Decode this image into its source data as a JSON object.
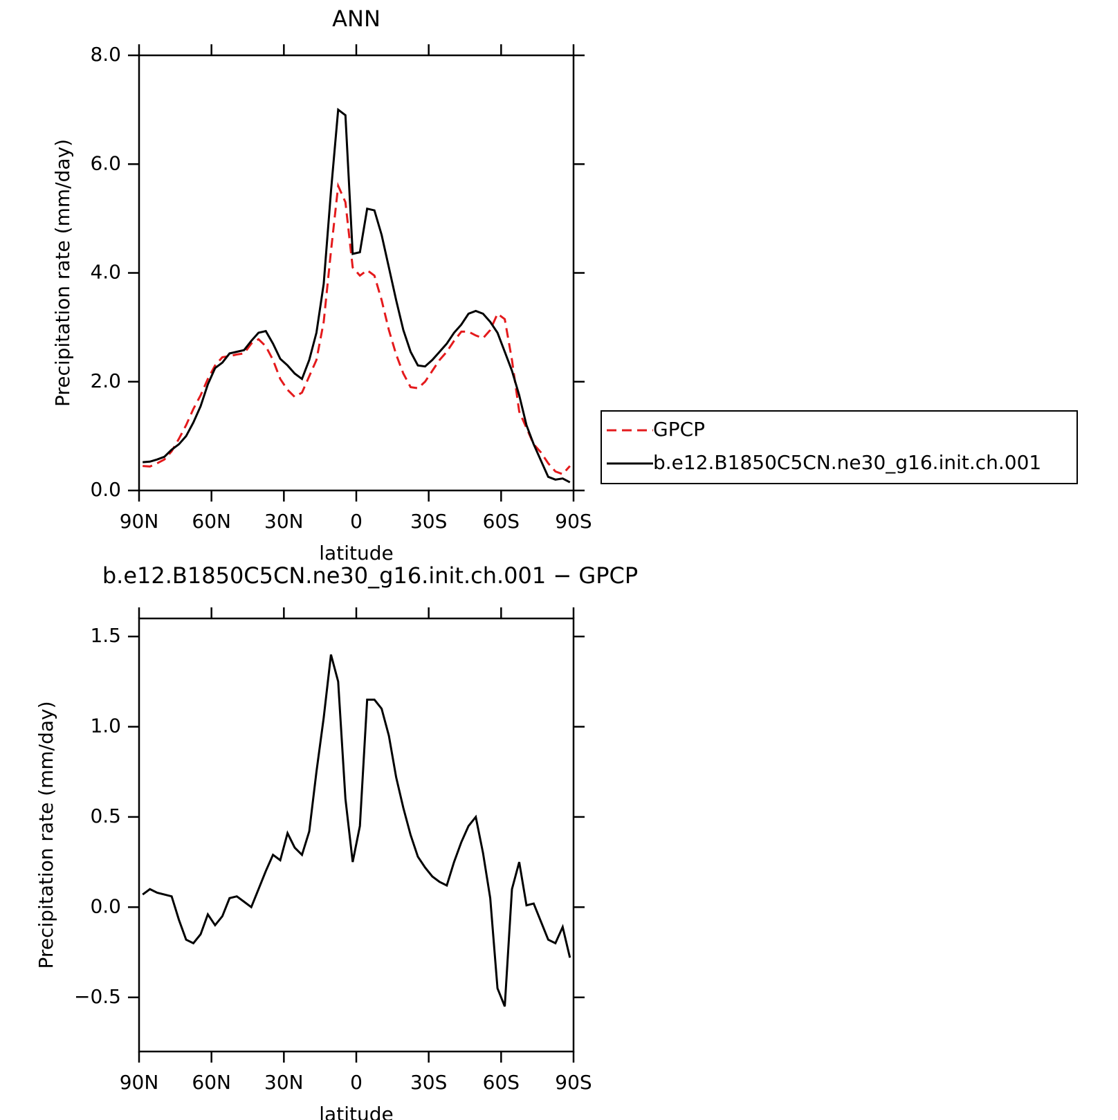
{
  "chart_data": [
    {
      "type": "line",
      "title": "ANN",
      "xlabel": "latitude",
      "ylabel": "Precipitation rate (mm/day)",
      "x": [
        88.5,
        85.5,
        82.5,
        79.5,
        76.5,
        73.5,
        70.5,
        67.5,
        64.5,
        61.5,
        58.5,
        55.5,
        52.5,
        49.5,
        46.5,
        43.5,
        40.5,
        37.5,
        34.5,
        31.5,
        28.5,
        25.5,
        22.5,
        19.5,
        16.5,
        13.5,
        10.5,
        7.5,
        4.5,
        1.5,
        -1.5,
        -4.5,
        -7.5,
        -10.5,
        -13.5,
        -16.5,
        -19.5,
        -22.5,
        -25.5,
        -28.5,
        -31.5,
        -34.5,
        -37.5,
        -40.5,
        -43.5,
        -46.5,
        -49.5,
        -52.5,
        -55.5,
        -58.5,
        -61.5,
        -64.5,
        -67.5,
        -70.5,
        -73.5,
        -76.5,
        -79.5,
        -82.5,
        -85.5,
        -88.5
      ],
      "series": [
        {
          "name": "GPCP",
          "color": "#e41a1c",
          "linestyle": "dashed",
          "values": [
            0.45,
            0.44,
            0.5,
            0.57,
            0.72,
            0.95,
            1.2,
            1.5,
            1.75,
            2.05,
            2.3,
            2.45,
            2.47,
            2.5,
            2.52,
            2.7,
            2.78,
            2.65,
            2.4,
            2.05,
            1.85,
            1.72,
            1.8,
            2.1,
            2.4,
            3.1,
            4.4,
            5.6,
            5.3,
            4.1,
            3.95,
            4.05,
            3.95,
            3.5,
            2.95,
            2.5,
            2.15,
            1.9,
            1.88,
            2.0,
            2.2,
            2.4,
            2.55,
            2.75,
            2.92,
            2.92,
            2.85,
            2.8,
            2.95,
            3.25,
            3.15,
            2.4,
            1.45,
            1.15,
            0.85,
            0.7,
            0.5,
            0.35,
            0.3,
            0.45
          ]
        },
        {
          "name": "b.e12.B1850C5CN.ne30_g16.init.ch.001",
          "color": "#000000",
          "linestyle": "solid",
          "values": [
            0.52,
            0.53,
            0.57,
            0.62,
            0.75,
            0.85,
            1.0,
            1.25,
            1.55,
            1.95,
            2.25,
            2.35,
            2.52,
            2.55,
            2.58,
            2.75,
            2.9,
            2.93,
            2.7,
            2.42,
            2.3,
            2.15,
            2.05,
            2.4,
            2.9,
            3.8,
            5.5,
            7.0,
            6.9,
            4.35,
            4.38,
            5.18,
            5.15,
            4.7,
            4.1,
            3.5,
            2.95,
            2.55,
            2.3,
            2.28,
            2.4,
            2.55,
            2.7,
            2.9,
            3.05,
            3.25,
            3.3,
            3.25,
            3.1,
            2.9,
            2.55,
            2.2,
            1.75,
            1.2,
            0.85,
            0.55,
            0.25,
            0.2,
            0.22,
            0.15
          ]
        }
      ],
      "legend": "right",
      "xlim": [
        90,
        -90
      ],
      "xticks": [
        {
          "value": 90,
          "label": "90N"
        },
        {
          "value": 60,
          "label": "60N"
        },
        {
          "value": 30,
          "label": "30N"
        },
        0,
        {
          "value": -30,
          "label": "30S"
        },
        {
          "value": -60,
          "label": "60S"
        },
        {
          "value": -90,
          "label": "90S"
        }
      ],
      "ylim": [
        0,
        8
      ],
      "yticks": [
        {
          "value": 0,
          "label": "0.0"
        },
        {
          "value": 2,
          "label": "2.0"
        },
        {
          "value": 4,
          "label": "4.0"
        },
        {
          "value": 6,
          "label": "6.0"
        },
        {
          "value": 8,
          "label": "8.0"
        }
      ]
    },
    {
      "type": "line",
      "title": "b.e12.B1850C5CN.ne30_g16.init.ch.001 − GPCP",
      "xlabel": "latitude",
      "ylabel": "Precipitation rate (mm/day)",
      "x": [
        88.5,
        85.5,
        82.5,
        79.5,
        76.5,
        73.5,
        70.5,
        67.5,
        64.5,
        61.5,
        58.5,
        55.5,
        52.5,
        49.5,
        46.5,
        43.5,
        40.5,
        37.5,
        34.5,
        31.5,
        28.5,
        25.5,
        22.5,
        19.5,
        16.5,
        13.5,
        10.5,
        7.5,
        4.5,
        1.5,
        -1.5,
        -4.5,
        -7.5,
        -10.5,
        -13.5,
        -16.5,
        -19.5,
        -22.5,
        -25.5,
        -28.5,
        -31.5,
        -34.5,
        -37.5,
        -40.5,
        -43.5,
        -46.5,
        -49.5,
        -52.5,
        -55.5,
        -58.5,
        -61.5,
        -64.5,
        -67.5,
        -70.5,
        -73.5,
        -76.5,
        -79.5,
        -82.5,
        -85.5,
        -88.5
      ],
      "series": [
        {
          "color": "#000000",
          "linestyle": "solid",
          "values": [
            0.07,
            0.1,
            0.08,
            0.07,
            0.06,
            -0.07,
            -0.18,
            -0.2,
            -0.15,
            -0.04,
            -0.1,
            -0.05,
            0.05,
            0.06,
            0.03,
            0.0,
            0.1,
            0.2,
            0.29,
            0.26,
            0.41,
            0.33,
            0.29,
            0.42,
            0.75,
            1.05,
            1.4,
            1.25,
            0.6,
            0.25,
            0.45,
            1.15,
            1.15,
            1.1,
            0.95,
            0.72,
            0.55,
            0.4,
            0.28,
            0.22,
            0.17,
            0.14,
            0.12,
            0.25,
            0.36,
            0.45,
            0.5,
            0.3,
            0.05,
            -0.45,
            -0.55,
            0.1,
            0.25,
            0.01,
            0.02,
            -0.08,
            -0.18,
            -0.2,
            -0.11,
            -0.28
          ]
        }
      ],
      "xlim": [
        90,
        -90
      ],
      "xticks": [
        {
          "value": 90,
          "label": "90N"
        },
        {
          "value": 60,
          "label": "60N"
        },
        {
          "value": 30,
          "label": "30N"
        },
        0,
        {
          "value": -30,
          "label": "30S"
        },
        {
          "value": -60,
          "label": "60S"
        },
        {
          "value": -90,
          "label": "90S"
        }
      ],
      "ylim": [
        -0.8,
        1.6
      ],
      "yticks": [
        {
          "value": -0.5,
          "label": "−0.5"
        },
        {
          "value": 0,
          "label": "0.0"
        },
        0.5,
        {
          "value": 1,
          "label": "1.0"
        },
        {
          "value": 1.5,
          "label": "1.5"
        }
      ]
    }
  ]
}
